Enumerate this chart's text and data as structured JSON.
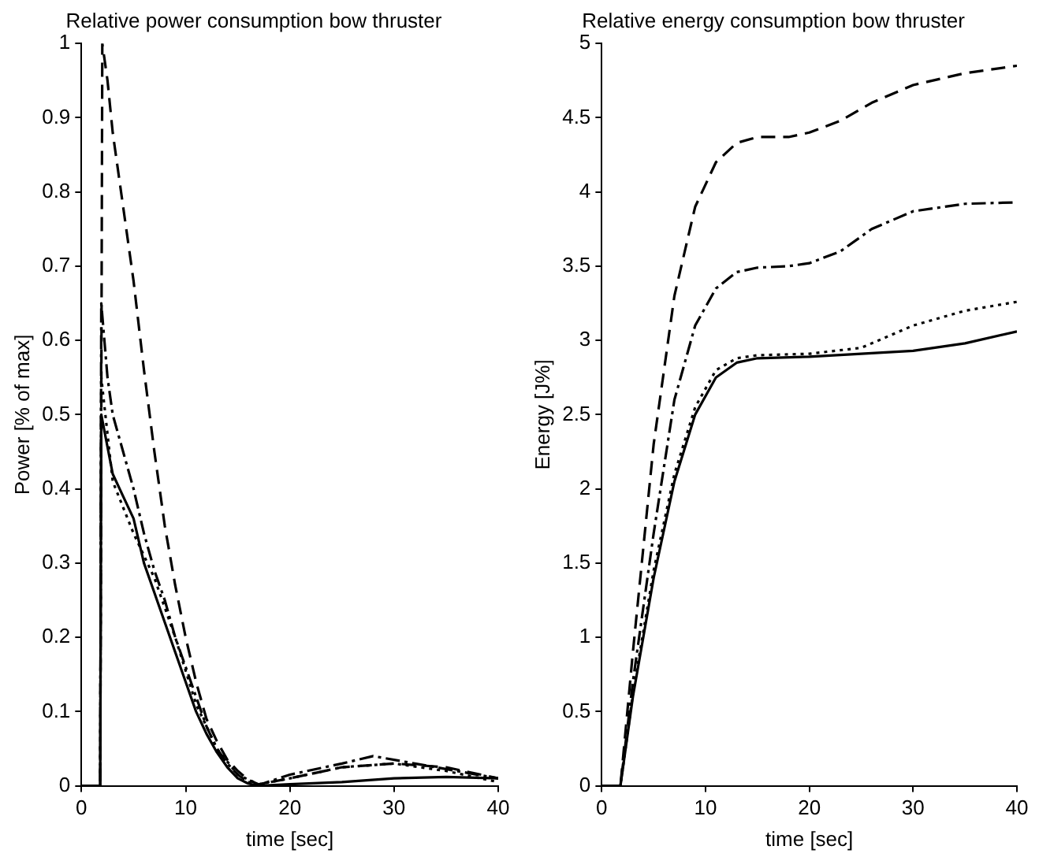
{
  "chart_data": [
    {
      "type": "line",
      "title": "Relative power consumption bow thruster",
      "xlabel": "time [sec]",
      "ylabel": "Power [% of max]",
      "xlim": [
        0,
        40
      ],
      "xticks": [
        0,
        10,
        20,
        30,
        40
      ],
      "ylim": [
        0,
        1
      ],
      "yticks": [
        0,
        0.1,
        0.2,
        0.3,
        0.4,
        0.5,
        0.6,
        0.7,
        0.8,
        0.9,
        1
      ],
      "grid": false,
      "legend": false,
      "marker": "none",
      "series": [
        {
          "color": "#000000",
          "line_style": "solid",
          "x": [
            0,
            1.8,
            1.9,
            3,
            4,
            5,
            6,
            7,
            8,
            9,
            10,
            11,
            12,
            13,
            14,
            15,
            16,
            17,
            20,
            25,
            30,
            35,
            40
          ],
          "values": [
            0,
            0,
            0.5,
            0.42,
            0.39,
            0.36,
            0.3,
            0.26,
            0.22,
            0.18,
            0.14,
            0.1,
            0.07,
            0.045,
            0.025,
            0.01,
            0.003,
            0,
            0.002,
            0.005,
            0.01,
            0.012,
            0.01
          ]
        },
        {
          "color": "#000000",
          "line_style": "dotted",
          "x": [
            0,
            1.8,
            1.9,
            3,
            5,
            7,
            9,
            11,
            13,
            15,
            17,
            20,
            25,
            30,
            35,
            40
          ],
          "values": [
            0,
            0,
            0.55,
            0.41,
            0.34,
            0.28,
            0.2,
            0.11,
            0.05,
            0.015,
            0.002,
            0.01,
            0.025,
            0.03,
            0.02,
            0.005
          ]
        },
        {
          "color": "#000000",
          "line_style": "dashdot",
          "x": [
            0,
            1.8,
            1.9,
            2.5,
            3,
            4,
            5,
            6,
            7,
            8,
            9,
            10,
            11,
            12,
            13,
            14,
            15,
            16,
            17,
            20,
            25,
            28,
            32,
            36,
            40
          ],
          "values": [
            0,
            0,
            0.65,
            0.55,
            0.5,
            0.45,
            0.4,
            0.34,
            0.29,
            0.25,
            0.2,
            0.16,
            0.12,
            0.08,
            0.05,
            0.03,
            0.015,
            0.005,
            0.001,
            0.015,
            0.03,
            0.04,
            0.03,
            0.02,
            0.01
          ]
        },
        {
          "color": "#000000",
          "line_style": "dashed",
          "x": [
            0,
            1.8,
            2,
            2.5,
            3,
            4,
            5,
            6,
            7,
            8,
            9,
            10,
            11,
            12,
            13,
            14,
            15,
            16,
            17,
            20,
            25,
            30,
            35,
            40
          ],
          "values": [
            0,
            0,
            1,
            0.95,
            0.88,
            0.78,
            0.68,
            0.56,
            0.45,
            0.35,
            0.27,
            0.2,
            0.14,
            0.09,
            0.06,
            0.035,
            0.02,
            0.008,
            0.002,
            0.01,
            0.025,
            0.03,
            0.025,
            0.01
          ]
        }
      ]
    },
    {
      "type": "line",
      "title": "Relative energy consumption bow thruster",
      "xlabel": "time [sec]",
      "ylabel": "Energy [J%]",
      "xlim": [
        0,
        40
      ],
      "xticks": [
        0,
        10,
        20,
        30,
        40
      ],
      "ylim": [
        0,
        5
      ],
      "yticks": [
        0,
        0.5,
        1,
        1.5,
        2,
        2.5,
        3,
        3.5,
        4,
        4.5,
        5
      ],
      "grid": false,
      "legend": false,
      "marker": "none",
      "series": [
        {
          "color": "#000000",
          "line_style": "solid",
          "x": [
            0,
            1.8,
            3,
            5,
            7,
            9,
            11,
            13,
            15,
            20,
            25,
            30,
            35,
            40
          ],
          "values": [
            0,
            0,
            0.6,
            1.4,
            2.05,
            2.5,
            2.75,
            2.85,
            2.88,
            2.89,
            2.91,
            2.93,
            2.98,
            3.06
          ]
        },
        {
          "color": "#000000",
          "line_style": "dotted",
          "x": [
            0,
            1.8,
            3,
            5,
            7,
            9,
            11,
            13,
            15,
            20,
            25,
            30,
            35,
            40
          ],
          "values": [
            0,
            0,
            0.62,
            1.45,
            2.1,
            2.55,
            2.8,
            2.88,
            2.9,
            2.91,
            2.95,
            3.1,
            3.2,
            3.26
          ]
        },
        {
          "color": "#000000",
          "line_style": "dashdot",
          "x": [
            0,
            1.8,
            3,
            5,
            7,
            9,
            11,
            13,
            15,
            18,
            20,
            23,
            26,
            30,
            35,
            40
          ],
          "values": [
            0,
            0,
            0.7,
            1.7,
            2.6,
            3.1,
            3.35,
            3.46,
            3.49,
            3.5,
            3.52,
            3.6,
            3.75,
            3.87,
            3.92,
            3.93
          ]
        },
        {
          "color": "#000000",
          "line_style": "dashed",
          "x": [
            0,
            1.8,
            3,
            5,
            7,
            9,
            11,
            13,
            15,
            18,
            20,
            23,
            26,
            30,
            35,
            40
          ],
          "values": [
            0,
            0,
            0.9,
            2.3,
            3.3,
            3.9,
            4.2,
            4.33,
            4.37,
            4.37,
            4.4,
            4.48,
            4.6,
            4.72,
            4.8,
            4.85
          ]
        }
      ]
    }
  ]
}
